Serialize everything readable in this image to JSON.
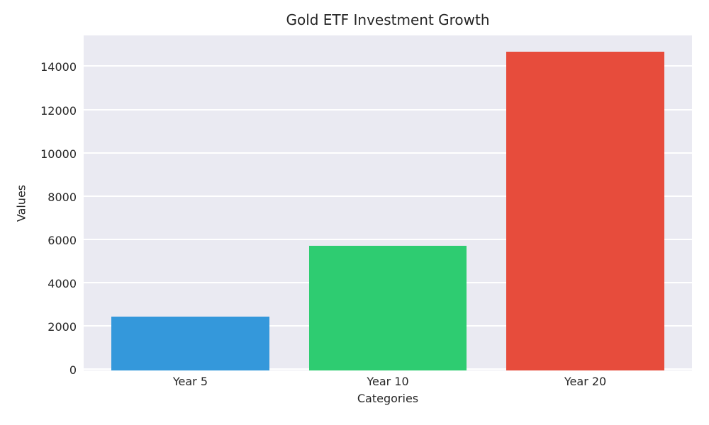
{
  "chart_data": {
    "type": "bar",
    "title": "Gold ETF Investment Growth",
    "xlabel": "Categories",
    "ylabel": "Values",
    "categories": [
      "Year 5",
      "Year 10",
      "Year 20"
    ],
    "values": [
      2500,
      5750,
      14750
    ],
    "bar_colors": [
      "#3498db",
      "#2ecc71",
      "#e74c3c"
    ],
    "yticks": [
      0,
      2000,
      4000,
      6000,
      8000,
      10000,
      12000,
      14000
    ],
    "ylim": [
      0,
      15488
    ],
    "xlim": [
      -0.54,
      2.54
    ],
    "bar_width": 0.8,
    "grid": true,
    "legend_position": "none",
    "plot_bg_color": "#eaeaf2",
    "grid_color": "#ffffff",
    "text_color": "#262626"
  }
}
